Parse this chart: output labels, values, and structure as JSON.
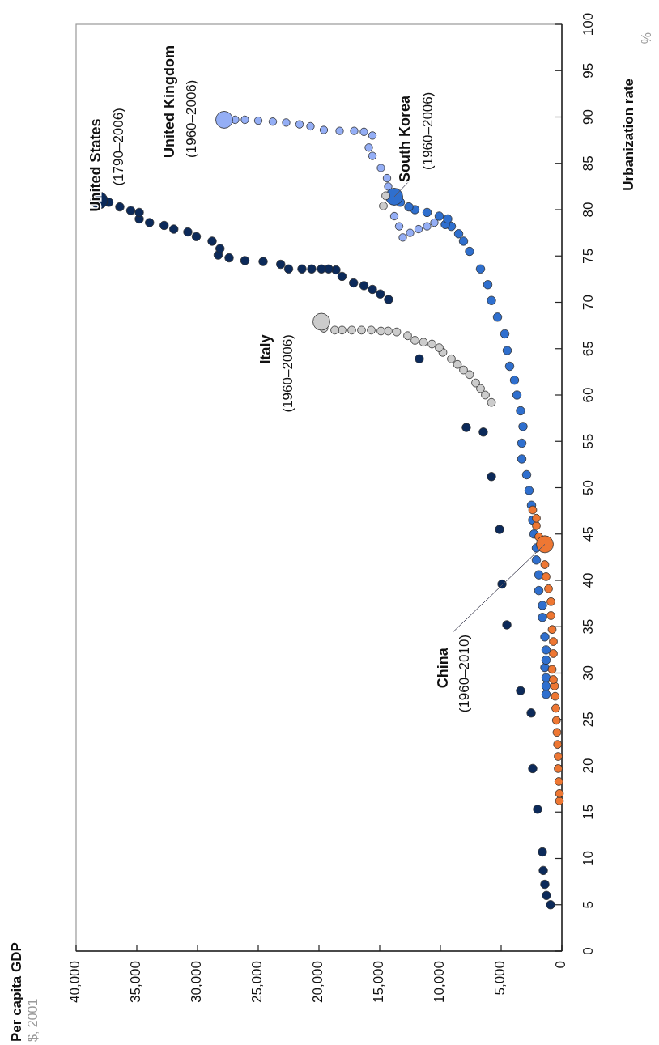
{
  "chart_data": {
    "type": "bubble",
    "ylabel": "Urbanization rate",
    "xlim": [
      40000,
      0
    ],
    "ylim": [
      0,
      100
    ],
    "yticks": [
      0,
      5,
      10,
      15,
      20,
      25,
      30,
      35,
      40,
      45,
      50,
      55,
      60,
      65,
      70,
      75,
      80,
      85,
      90,
      95,
      100
    ],
    "xticks": [
      0,
      {
        "value": 5000,
        "label": "5,000"
      },
      {
        "value": 10000,
        "label": "10,000"
      },
      {
        "value": 15000,
        "label": "15,000"
      },
      {
        "value": 20000,
        "label": "20,000"
      },
      {
        "value": 25000,
        "label": "25,000"
      },
      {
        "value": 30000,
        "label": "30,000"
      },
      {
        "value": 35000,
        "label": "35,000"
      },
      {
        "value": 40000,
        "label": "40,000"
      }
    ],
    "series": [
      {
        "name": "United States",
        "color": "#0c2a5a",
        "values": [
          81.0,
          80.8,
          80.3,
          79.9,
          79.7,
          79.0,
          78.6,
          78.3,
          77.9,
          77.6,
          77.1,
          76.6,
          75.8,
          75.1,
          74.8,
          74.5,
          74.4,
          74.1,
          73.6,
          73.6,
          73.6,
          73.6,
          73.6,
          73.5,
          72.8,
          72.1,
          71.8,
          71.4,
          70.9,
          70.3,
          63.9,
          56.5,
          56.0,
          51.2,
          45.5,
          39.6,
          35.2,
          28.1,
          25.7,
          19.7,
          15.3,
          10.7,
          8.7,
          7.2,
          6.0,
          5.0
        ],
        "x": [
          38100,
          37300,
          36400,
          35500,
          34800,
          34800,
          33950,
          32750,
          31950,
          30800,
          30100,
          28800,
          28150,
          28300,
          27400,
          26100,
          24600,
          23150,
          22500,
          21400,
          20600,
          19800,
          19200,
          18600,
          18100,
          17150,
          16300,
          15600,
          14950,
          14270,
          11740,
          7870,
          6470,
          5800,
          5130,
          4930,
          4530,
          3400,
          2530,
          2400,
          2000,
          1600,
          1530,
          1400,
          1270,
          930
        ],
        "sizes": [
          1,
          0.25,
          0.25,
          0.25,
          0.25,
          0.25,
          0.25,
          0.25,
          0.25,
          0.25,
          0.25,
          0.25,
          0.25,
          0.25,
          0.25,
          0.25,
          0.25,
          0.25,
          0.25,
          0.25,
          0.25,
          0.25,
          0.25,
          0.25,
          0.25,
          0.25,
          0.25,
          0.25,
          0.25,
          0.25,
          0.25,
          0.25,
          0.25,
          0.25,
          0.25,
          0.25,
          0.25,
          0.25,
          0.25,
          0.25,
          0.25,
          0.25,
          0.25,
          0.25,
          0.25,
          0.25
        ]
      },
      {
        "name": "United Kingdom",
        "color": "#94aef5",
        "values": [
          89.7,
          89.7,
          89.7,
          89.6,
          89.5,
          89.4,
          89.2,
          89.0,
          88.6,
          88.5,
          88.5,
          88.4,
          88.0,
          86.7,
          85.8,
          84.5,
          83.4,
          82.5,
          79.3,
          78.2,
          77.0,
          77.5,
          77.9,
          78.2,
          78.6
        ],
        "x": [
          27800,
          26900,
          26100,
          25000,
          23800,
          22700,
          21600,
          20700,
          19600,
          18300,
          17100,
          16300,
          15600,
          15900,
          15600,
          14900,
          14400,
          14300,
          13800,
          13400,
          13100,
          12500,
          11800,
          11100,
          10500
        ],
        "sizes": [
          1,
          0.2,
          0.2,
          0.2,
          0.2,
          0.2,
          0.2,
          0.2,
          0.2,
          0.2,
          0.2,
          0.2,
          0.2,
          0.2,
          0.2,
          0.2,
          0.2,
          0.2,
          0.2,
          0.2,
          0.2,
          0.2,
          0.2,
          0.2,
          0.2
        ]
      },
      {
        "name": "South Korea",
        "color": "#2f6fce",
        "values": [
          81.4,
          80.8,
          80.3,
          80.0,
          79.7,
          79.3,
          79.0,
          78.4,
          78.2,
          77.4,
          76.6,
          75.5,
          73.6,
          71.9,
          70.2,
          68.4,
          66.6,
          64.8,
          63.1,
          61.6,
          60.0,
          58.3,
          56.6,
          54.8,
          53.1,
          51.4,
          49.7,
          48.1,
          46.5,
          45.0,
          43.5,
          42.2,
          40.6,
          38.9,
          37.3,
          36.0,
          33.9,
          32.5,
          31.4,
          30.6,
          29.5,
          28.6,
          27.7
        ],
        "x": [
          13800,
          13300,
          12600,
          12100,
          11100,
          10100,
          9400,
          9600,
          9100,
          8500,
          8100,
          7600,
          6700,
          6100,
          5800,
          5300,
          4700,
          4500,
          4300,
          3900,
          3700,
          3400,
          3200,
          3300,
          3300,
          2900,
          2700,
          2500,
          2400,
          2300,
          2100,
          2100,
          1900,
          1900,
          1600,
          1600,
          1400,
          1300,
          1300,
          1400,
          1300,
          1300,
          1300
        ],
        "sizes": [
          1,
          0.25,
          0.25,
          0.25,
          0.25,
          0.25,
          0.25,
          0.25,
          0.25,
          0.25,
          0.25,
          0.25,
          0.25,
          0.25,
          0.25,
          0.25,
          0.25,
          0.25,
          0.25,
          0.25,
          0.25,
          0.25,
          0.25,
          0.25,
          0.25,
          0.25,
          0.25,
          0.25,
          0.25,
          0.25,
          0.25,
          0.25,
          0.25,
          0.25,
          0.25,
          0.25,
          0.25,
          0.25,
          0.25,
          0.25,
          0.25,
          0.25,
          0.25
        ]
      },
      {
        "name": "Italy",
        "color": "#cccccc",
        "values": [
          67.9,
          67.2,
          67.0,
          67.0,
          67.0,
          67.0,
          67.0,
          66.9,
          66.9,
          66.8,
          66.4,
          65.9,
          65.7,
          65.5,
          65.1,
          64.6,
          63.9,
          63.3,
          62.7,
          62.2,
          61.3,
          60.7,
          60.0,
          59.2
        ],
        "x": [
          19800,
          19600,
          18700,
          18100,
          17300,
          16500,
          15700,
          14900,
          14300,
          13600,
          12700,
          12100,
          11400,
          10700,
          10100,
          9800,
          9100,
          8600,
          8100,
          7600,
          7100,
          6700,
          6300,
          5800
        ],
        "sizes": [
          1,
          0.22,
          0.22,
          0.22,
          0.22,
          0.22,
          0.22,
          0.22,
          0.22,
          0.22,
          0.22,
          0.22,
          0.22,
          0.22,
          0.22,
          0.22,
          0.22,
          0.22,
          0.22,
          0.22,
          0.22,
          0.22,
          0.22,
          0.22
        ]
      },
      {
        "name": "China",
        "color": "#ee7733",
        "values": [
          43.9,
          47.6,
          46.7,
          45.9,
          44.7,
          41.7,
          40.4,
          39.1,
          37.7,
          36.2,
          34.7,
          33.4,
          32.1,
          30.4,
          29.3,
          28.6,
          27.5,
          26.2,
          24.9,
          23.6,
          22.3,
          21.0,
          19.7,
          18.3,
          17.0,
          16.2
        ],
        "x": [
          1400,
          2400,
          2100,
          2100,
          1900,
          1400,
          1300,
          1100,
          900,
          900,
          800,
          700,
          700,
          800,
          700,
          600,
          550,
          500,
          450,
          400,
          350,
          300,
          300,
          250,
          200,
          200
        ],
        "sizes": [
          1,
          0.22,
          0.22,
          0.22,
          0.22,
          0.22,
          0.22,
          0.22,
          0.22,
          0.22,
          0.22,
          0.22,
          0.22,
          0.22,
          0.22,
          0.22,
          0.22,
          0.22,
          0.22,
          0.22,
          0.22,
          0.22,
          0.22,
          0.22,
          0.22,
          0.22
        ]
      },
      {
        "color": "#cccccc",
        "values": [
          81.5,
          80.4
        ],
        "x": [
          14500,
          14700
        ],
        "sizes": [
          0.22,
          0.22
        ]
      }
    ],
    "annotations": [
      {
        "text": "(1790–2006)",
        "x": 38100,
        "y": 81.0
      },
      {
        "text": "(1960–2006)",
        "x": 27800,
        "y": 89.7
      },
      {
        "text": "(1960–2006)",
        "x": 13800,
        "y": 81.4
      },
      {
        "text": "(1960–2006)",
        "x": 19800,
        "y": 67.9
      },
      {
        "text": "(1960–2010)",
        "x": 1400,
        "y": 43.9
      },
      "Per capita GDP",
      "$, 2001",
      "%"
    ]
  }
}
